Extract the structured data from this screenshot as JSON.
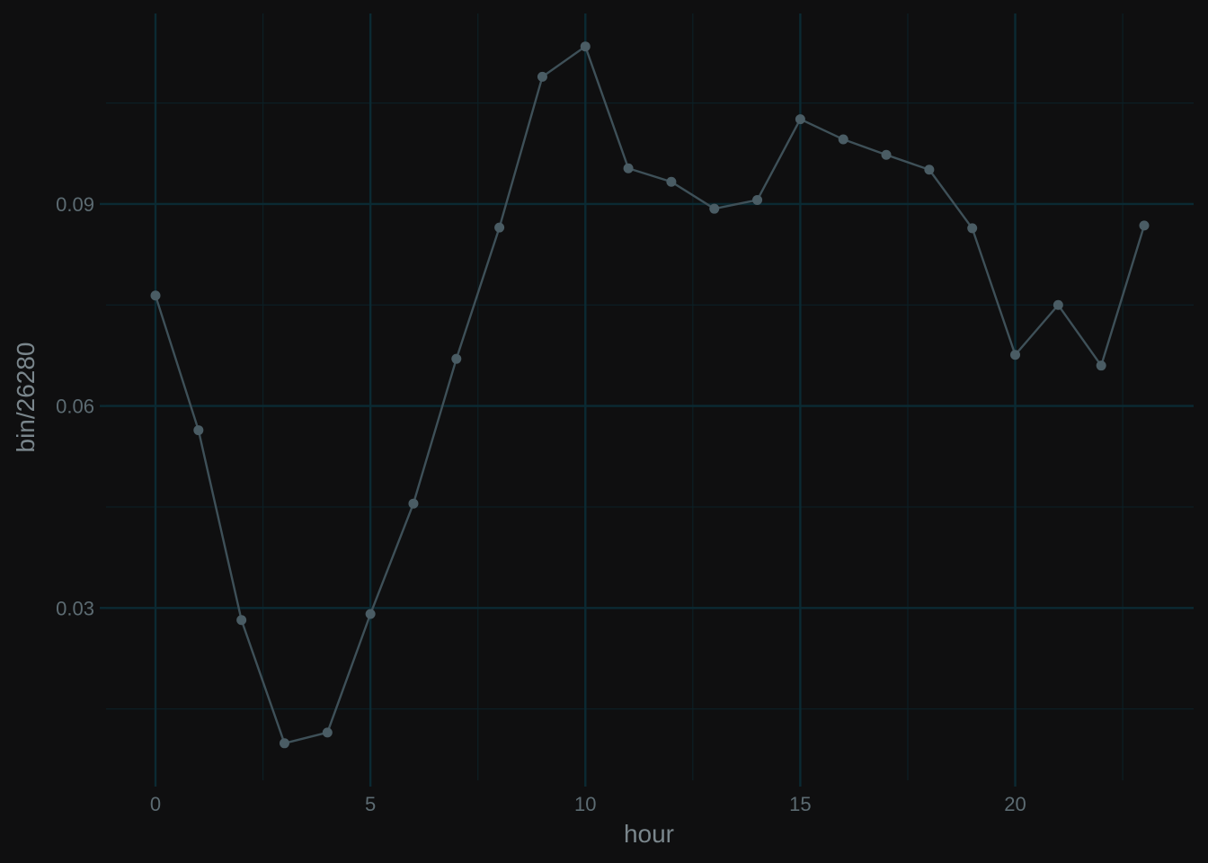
{
  "chart_data": {
    "type": "line",
    "title": "",
    "xlabel": "hour",
    "ylabel": "bin/26280",
    "x": [
      0,
      1,
      2,
      3,
      4,
      5,
      6,
      7,
      8,
      9,
      10,
      11,
      12,
      13,
      14,
      15,
      16,
      17,
      18,
      19,
      20,
      21,
      22,
      23
    ],
    "series": [
      {
        "values": [
          0.0764,
          0.0564,
          0.0282,
          0.0099,
          0.0115,
          0.0291,
          0.0455,
          0.067,
          0.0865,
          0.1089,
          0.1134,
          0.0953,
          0.0933,
          0.0893,
          0.0906,
          0.1026,
          0.0996,
          0.0973,
          0.0951,
          0.0864,
          0.0676,
          0.075,
          0.066,
          0.0868
        ]
      }
    ],
    "xticks": [
      0,
      5,
      10,
      15,
      20
    ],
    "xtick_labels": [
      "0",
      "5",
      "10",
      "15",
      "20"
    ],
    "yticks": [
      0.03,
      0.06,
      0.09
    ],
    "ytick_labels": [
      "0.03",
      "0.06",
      "0.09"
    ],
    "xlim": [
      -1.15,
      24.15
    ],
    "ylim": [
      0.0044,
      0.1183
    ],
    "grid": true,
    "colors": {
      "background": "#0f0f10",
      "grid_major": "#0b2a33",
      "grid_minor": "#0c1f25",
      "line": "#3e5058",
      "point": "#4a5c64",
      "tick_label": "#5c6b72",
      "axis_title": "#7a868c"
    }
  }
}
